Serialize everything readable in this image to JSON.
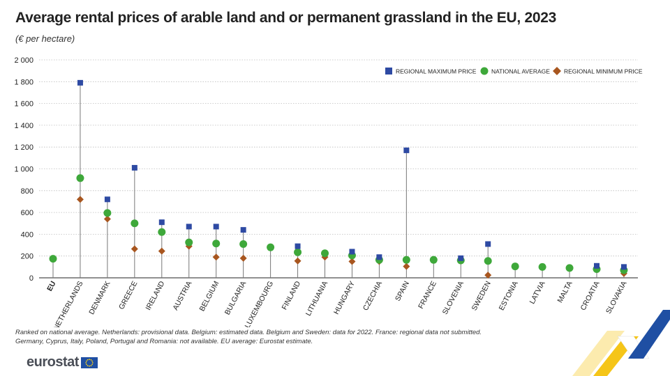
{
  "title": "Average rental prices of arable land and or permanent grassland in the EU, 2023",
  "subtitle": "(€ per hectare)",
  "notes": [
    "Ranked on national average. Netherlands: provisional data. Belgium: estimated data. Belgium and Sweden: data for 2022. France: regional data not submitted.",
    "Germany, Cyprus, Italy, Poland, Portugal and Romania: not available. EU average: Eurostat estimate."
  ],
  "logo": {
    "text": "eurostat"
  },
  "colors": {
    "max": "#2e4aa3",
    "avg": "#3ea83a",
    "min": "#a8561f",
    "whisker": "#777777",
    "grid": "#bdbdbd"
  },
  "chart_data": {
    "type": "scatter",
    "ylim": [
      0,
      2000
    ],
    "yticks": [
      0,
      200,
      400,
      600,
      800,
      1000,
      1200,
      1400,
      1600,
      1800,
      2000
    ],
    "ytick_labels": [
      "0",
      "200",
      "400",
      "600",
      "800",
      "1 000",
      "1 200",
      "1 400",
      "1 600",
      "1 800",
      "2 000"
    ],
    "grid": true,
    "legend_position": "top-right",
    "categories": [
      "EU",
      "NETHERLANDS",
      "DENMARK",
      "GREECE",
      "IRELAND",
      "AUSTRIA",
      "BELGIUM",
      "BULGARIA",
      "LUXEMBOURG",
      "FINLAND",
      "LITHUANIA",
      "HUNGARY",
      "CZECHIA",
      "SPAIN",
      "FRANCE",
      "SLOVENIA",
      "SWEDEN",
      "ESTONIA",
      "LATVIA",
      "MALTA",
      "CROATIA",
      "SLOVAKIA"
    ],
    "series": [
      {
        "name": "REGIONAL MAXIMUM PRICE",
        "marker": "square",
        "values": [
          null,
          1790,
          720,
          1010,
          510,
          470,
          470,
          440,
          null,
          290,
          null,
          240,
          190,
          1170,
          null,
          180,
          310,
          null,
          null,
          null,
          110,
          100
        ]
      },
      {
        "name": "NATIONAL AVERAGE",
        "marker": "circle",
        "values": [
          175,
          915,
          595,
          500,
          420,
          325,
          315,
          310,
          280,
          235,
          225,
          205,
          165,
          165,
          165,
          160,
          155,
          105,
          100,
          90,
          80,
          70
        ]
      },
      {
        "name": "REGIONAL MINIMUM PRICE",
        "marker": "diamond",
        "values": [
          null,
          720,
          540,
          265,
          245,
          290,
          190,
          180,
          null,
          155,
          190,
          150,
          150,
          105,
          null,
          160,
          25,
          null,
          null,
          null,
          75,
          40
        ]
      }
    ]
  }
}
